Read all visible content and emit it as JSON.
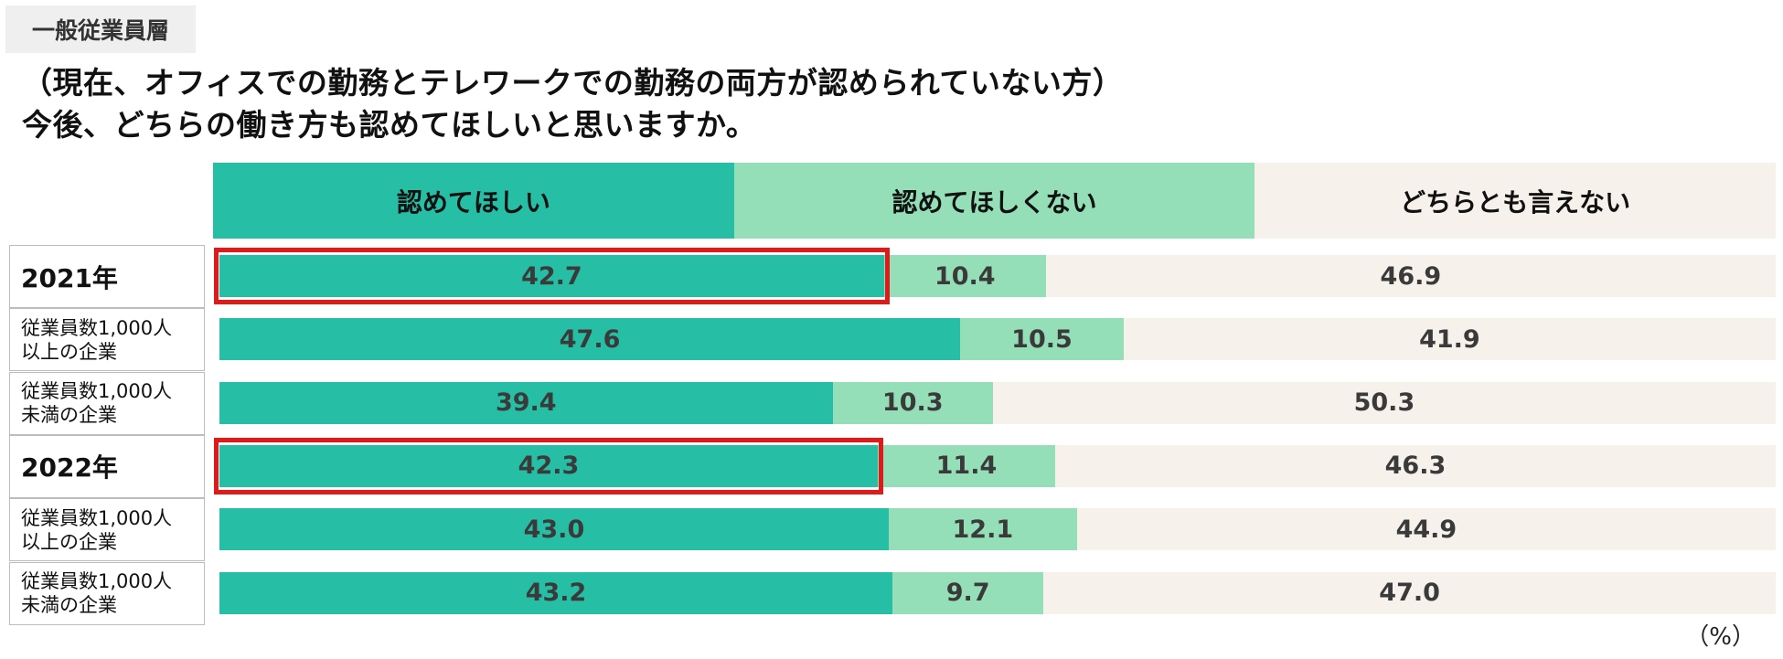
{
  "tag": "一般従業員層",
  "title": {
    "line1": "（現在、オフィスでの勤務とテレワークでの勤務の両方が認められていない方）",
    "line2": "今後、どちらの働き方も認めてほしいと思いますか。"
  },
  "colors": {
    "want": "#26bea4",
    "not_want": "#94dfb8",
    "neither": "#f6f1ea",
    "highlight": "#e01919"
  },
  "chart_data": {
    "type": "bar",
    "orientation": "horizontal-stacked-100",
    "series_names": [
      "認めてほしい",
      "認めてほしくない",
      "どちらとも言えない"
    ],
    "unit": "（%）",
    "rows": [
      {
        "label": "2021年",
        "kind": "year",
        "highlight": true,
        "values": [
          42.7,
          10.4,
          46.9
        ],
        "labels": [
          "42.7",
          "10.4",
          "46.9"
        ]
      },
      {
        "label": "従業員数1,000人\n以上の企業",
        "kind": "sub",
        "highlight": false,
        "values": [
          47.6,
          10.5,
          41.9
        ],
        "labels": [
          "47.6",
          "10.5",
          "41.9"
        ]
      },
      {
        "label": "従業員数1,000人\n未満の企業",
        "kind": "sub",
        "highlight": false,
        "values": [
          39.4,
          10.3,
          50.3
        ],
        "labels": [
          "39.4",
          "10.3",
          "50.3"
        ]
      },
      {
        "label": "2022年",
        "kind": "year",
        "highlight": true,
        "values": [
          42.3,
          11.4,
          46.3
        ],
        "labels": [
          "42.3",
          "11.4",
          "46.3"
        ]
      },
      {
        "label": "従業員数1,000人\n以上の企業",
        "kind": "sub",
        "highlight": false,
        "values": [
          43.0,
          12.1,
          44.9
        ],
        "labels": [
          "43.0",
          "12.1",
          "44.9"
        ]
      },
      {
        "label": "従業員数1,000人\n未満の企業",
        "kind": "sub",
        "highlight": false,
        "values": [
          43.2,
          9.7,
          47.0
        ],
        "labels": [
          "43.2",
          "9.7",
          "47.0"
        ]
      }
    ]
  }
}
